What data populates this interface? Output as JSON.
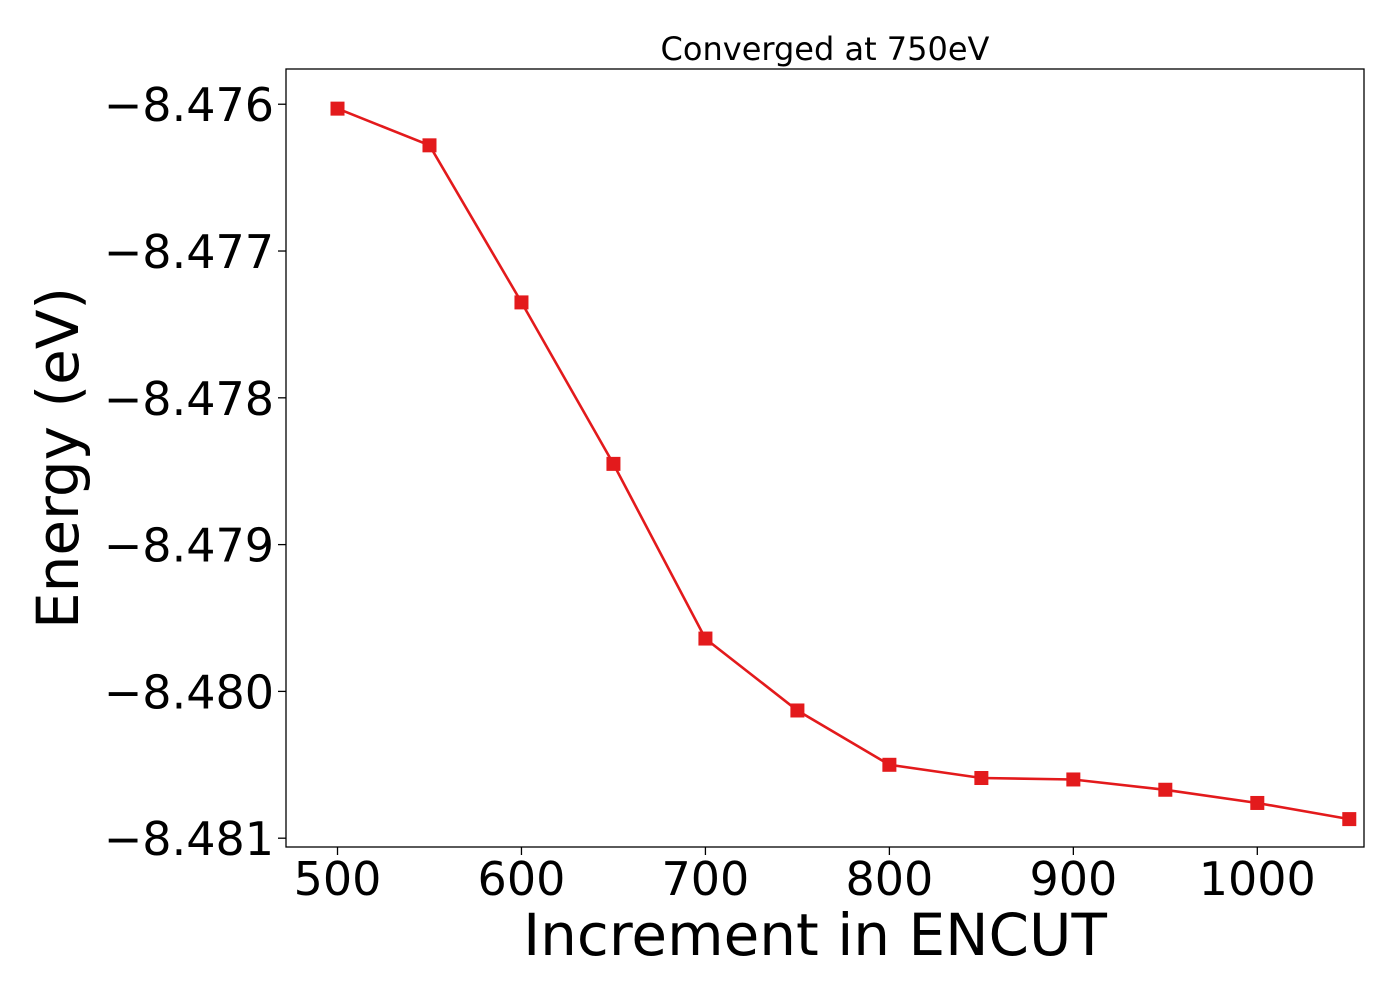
{
  "chart_data": {
    "type": "line",
    "title": "Converged at 750eV",
    "xlabel": "Increment in ENCUT",
    "ylabel": "Energy (eV)",
    "xlim": [
      472,
      1058
    ],
    "ylim": [
      -8.48106,
      -8.47576
    ],
    "x_ticks": [
      500,
      600,
      700,
      800,
      900,
      1000
    ],
    "x_tick_labels": [
      "500",
      "600",
      "700",
      "800",
      "900",
      "1000"
    ],
    "y_ticks": [
      -8.476,
      -8.477,
      -8.478,
      -8.479,
      -8.48,
      -8.481
    ],
    "y_tick_labels": [
      "−8.476",
      "−8.477",
      "−8.478",
      "−8.479",
      "−8.480",
      "−8.481"
    ],
    "grid": false,
    "legend": "none",
    "series": [
      {
        "color": "#e31a1c",
        "marker": "square",
        "x": [
          500,
          550,
          600,
          650,
          700,
          750,
          800,
          850,
          900,
          950,
          1000,
          1050
        ],
        "y": [
          -8.47603,
          -8.47628,
          -8.47735,
          -8.47845,
          -8.47964,
          -8.48013,
          -8.4805,
          -8.48059,
          -8.4806,
          -8.48067,
          -8.48076,
          -8.48087
        ]
      }
    ]
  }
}
